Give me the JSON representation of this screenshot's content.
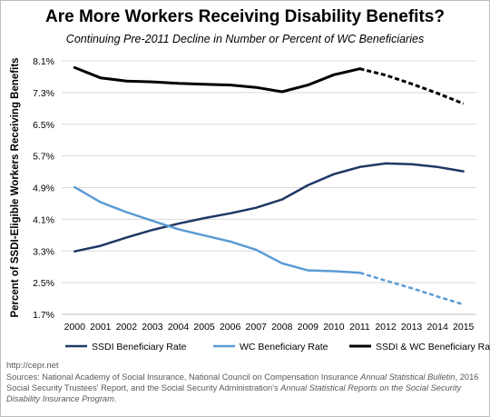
{
  "title": "Are More Workers Receiving Disability Benefits?",
  "subtitle": "Continuing Pre-2011 Decline in Number or Percent of WC Beneficiaries",
  "footer": {
    "url": "http://cepr.net",
    "sources_prefix": "Sources: National Academy of Social Insurance, National Council on Compensation Insurance ",
    "sources_italic_1": "Annual Statistical Bulletin",
    "sources_mid": ", 2016 Social Security Trustees' Report, and the Social Security Administration's ",
    "sources_italic_2": "Annual Statistical Reports on the Social Security Disability Insurance Program",
    "sources_end": "."
  },
  "colors": {
    "ssdi": "#1f3864",
    "wc": "#5b9bd5",
    "combined": "#000000",
    "grid": "#d9d9d9"
  },
  "chart_data": {
    "type": "line",
    "ylabel": "Percent of SSDI-Eligible Workers Receiving Benefits",
    "xlabel": "",
    "x": [
      "2000",
      "2001",
      "2002",
      "2003",
      "2004",
      "2005",
      "2006",
      "2007",
      "2008",
      "2009",
      "2010",
      "2011",
      "2012",
      "2013",
      "2014",
      "2015"
    ],
    "ylim": [
      1.7,
      8.1
    ],
    "yticks": [
      "8.1%",
      "7.3%",
      "6.5%",
      "5.7%",
      "4.9%",
      "4.1%",
      "3.3%",
      "2.5%",
      "1.7%"
    ],
    "ytick_values": [
      8.1,
      7.3,
      6.5,
      5.7,
      4.9,
      4.1,
      3.3,
      2.5,
      1.7
    ],
    "grid": true,
    "legend_position": "bottom",
    "projection_start": "2011",
    "series": [
      {
        "name": "SSDI Beneficiary Rate",
        "key": "ssdi",
        "values": [
          3.29,
          3.43,
          3.64,
          3.83,
          3.99,
          4.13,
          4.25,
          4.39,
          4.6,
          4.96,
          5.24,
          5.42,
          5.51,
          5.49,
          5.42,
          5.31
        ],
        "projected": null
      },
      {
        "name": "WC Beneficiary Rate",
        "key": "wc",
        "values": [
          4.91,
          4.53,
          4.28,
          4.06,
          3.85,
          3.69,
          3.54,
          3.33,
          2.99,
          2.81,
          2.79,
          2.75,
          null,
          null,
          null,
          null
        ],
        "projected": [
          null,
          null,
          null,
          null,
          null,
          null,
          null,
          null,
          null,
          null,
          null,
          2.75,
          2.55,
          2.36,
          2.15,
          1.95
        ]
      },
      {
        "name": "SSDI & WC Beneficiary Rate",
        "key": "combined",
        "values": [
          7.93,
          7.67,
          7.59,
          7.57,
          7.53,
          7.51,
          7.49,
          7.43,
          7.32,
          7.49,
          7.75,
          7.9,
          null,
          null,
          null,
          null
        ],
        "projected": [
          null,
          null,
          null,
          null,
          null,
          null,
          null,
          null,
          null,
          null,
          null,
          7.9,
          7.74,
          7.52,
          7.28,
          7.02
        ]
      }
    ]
  }
}
